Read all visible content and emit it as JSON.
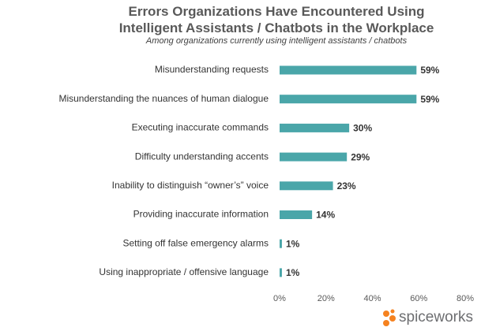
{
  "chart_data": {
    "type": "bar",
    "orientation": "horizontal",
    "title": "Errors Organizations Have Encountered Using Intelligent Assistants / Chatbots in the Workplace",
    "subtitle": "Among organizations currently using intelligent assistants / chatbots",
    "categories": [
      "Misunderstanding requests",
      "Misunderstanding the nuances of human dialogue",
      "Executing inaccurate commands",
      "Difficulty understanding accents",
      "Inability to distinguish “owner’s” voice",
      "Providing inaccurate information",
      "Setting off false emergency alarms",
      "Using inappropriate / offensive language"
    ],
    "values": [
      59,
      59,
      30,
      29,
      23,
      14,
      1,
      1
    ],
    "value_labels": [
      "59%",
      "59%",
      "30%",
      "29%",
      "23%",
      "14%",
      "1%",
      "1%"
    ],
    "color": "#4aa6a9",
    "xlim": [
      0,
      80
    ],
    "xticks": [
      {
        "value": 0,
        "label": "0%"
      },
      {
        "value": 20,
        "label": "20%"
      },
      {
        "value": 40,
        "label": "40%"
      },
      {
        "value": 60,
        "label": "60%"
      },
      {
        "value": 80,
        "label": "80%"
      }
    ],
    "grid": false
  },
  "logo": {
    "text": "spiceworks"
  }
}
